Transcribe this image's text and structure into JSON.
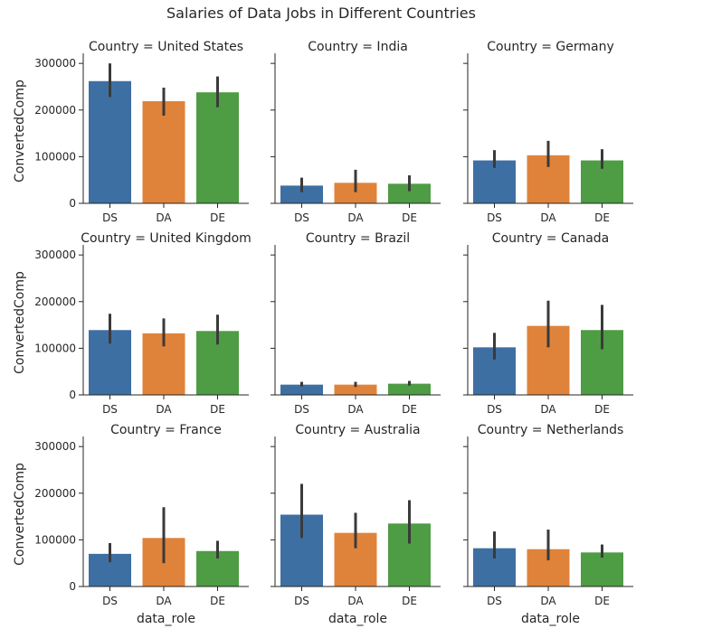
{
  "chart_data": {
    "type": "bar",
    "title": "Salaries of Data Jobs in Different Countries",
    "xlabel": "data_role",
    "ylabel": "ConvertedComp",
    "categories": [
      "DS",
      "DA",
      "DE"
    ],
    "colors": [
      "#3e6fa3",
      "#e0833a",
      "#4e9c43"
    ],
    "ylim": [
      0,
      310000
    ],
    "yticks": [
      0,
      100000,
      200000,
      300000
    ],
    "grid": false,
    "facet_label_prefix": "Country = ",
    "facets": [
      {
        "country": "United States",
        "values": [
          262000,
          219000,
          238000
        ],
        "ci": [
          [
            228000,
            300000
          ],
          [
            188000,
            248000
          ],
          [
            206000,
            272000
          ]
        ]
      },
      {
        "country": "India",
        "values": [
          38000,
          44000,
          42000
        ],
        "ci": [
          [
            24000,
            55000
          ],
          [
            24000,
            72000
          ],
          [
            26000,
            60000
          ]
        ]
      },
      {
        "country": "Germany",
        "values": [
          92000,
          103000,
          92000
        ],
        "ci": [
          [
            76000,
            114000
          ],
          [
            78000,
            134000
          ],
          [
            74000,
            116000
          ]
        ]
      },
      {
        "country": "United Kingdom",
        "values": [
          139000,
          132000,
          137000
        ],
        "ci": [
          [
            110000,
            174000
          ],
          [
            104000,
            164000
          ],
          [
            108000,
            172000
          ]
        ]
      },
      {
        "country": "Brazil",
        "values": [
          22000,
          22000,
          24000
        ],
        "ci": [
          [
            18000,
            28000
          ],
          [
            17000,
            28000
          ],
          [
            20000,
            30000
          ]
        ]
      },
      {
        "country": "Canada",
        "values": [
          102000,
          148000,
          139000
        ],
        "ci": [
          [
            76000,
            133000
          ],
          [
            102000,
            202000
          ],
          [
            98000,
            193000
          ]
        ]
      },
      {
        "country": "France",
        "values": [
          70000,
          104000,
          76000
        ],
        "ci": [
          [
            52000,
            93000
          ],
          [
            50000,
            170000
          ],
          [
            60000,
            98000
          ]
        ]
      },
      {
        "country": "Australia",
        "values": [
          154000,
          115000,
          135000
        ],
        "ci": [
          [
            104000,
            220000
          ],
          [
            82000,
            158000
          ],
          [
            92000,
            185000
          ]
        ]
      },
      {
        "country": "Netherlands",
        "values": [
          82000,
          80000,
          73000
        ],
        "ci": [
          [
            60000,
            118000
          ],
          [
            56000,
            122000
          ],
          [
            62000,
            90000
          ]
        ]
      }
    ]
  }
}
